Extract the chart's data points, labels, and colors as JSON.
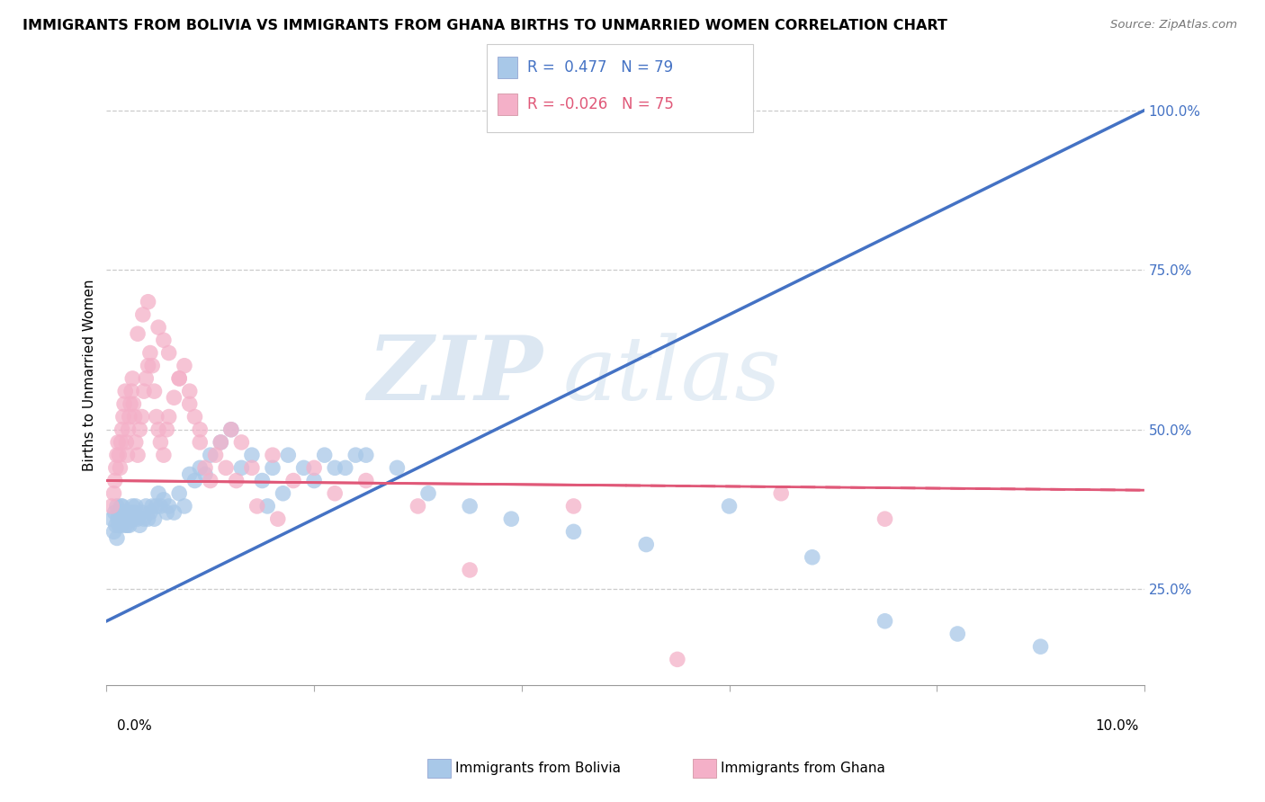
{
  "title": "IMMIGRANTS FROM BOLIVIA VS IMMIGRANTS FROM GHANA BIRTHS TO UNMARRIED WOMEN CORRELATION CHART",
  "source": "Source: ZipAtlas.com",
  "ylabel": "Births to Unmarried Women",
  "legend_label1": "Immigrants from Bolivia",
  "legend_label2": "Immigrants from Ghana",
  "watermark_zip": "ZIP",
  "watermark_atlas": "atlas",
  "bolivia_color": "#a8c8e8",
  "ghana_color": "#f4b0c8",
  "bolivia_line_color": "#4472c4",
  "ghana_line_color": "#e05878",
  "xlim": [
    0.0,
    10.0
  ],
  "ylim": [
    10.0,
    107.0
  ],
  "R_bolivia": 0.477,
  "N_bolivia": 79,
  "R_ghana": -0.026,
  "N_ghana": 75,
  "bolivia_line_x0": 0.0,
  "bolivia_line_y0": 20.0,
  "bolivia_line_x1": 10.0,
  "bolivia_line_y1": 100.0,
  "ghana_line_x0": 0.0,
  "ghana_line_y0": 42.0,
  "ghana_line_x1": 10.0,
  "ghana_line_y1": 40.5,
  "bolivia_x": [
    0.05,
    0.07,
    0.08,
    0.09,
    0.1,
    0.1,
    0.11,
    0.12,
    0.12,
    0.13,
    0.14,
    0.14,
    0.15,
    0.15,
    0.16,
    0.17,
    0.18,
    0.18,
    0.19,
    0.2,
    0.2,
    0.21,
    0.22,
    0.23,
    0.24,
    0.25,
    0.26,
    0.27,
    0.28,
    0.3,
    0.32,
    0.34,
    0.36,
    0.38,
    0.4,
    0.42,
    0.44,
    0.46,
    0.48,
    0.5,
    0.52,
    0.55,
    0.58,
    0.6,
    0.65,
    0.7,
    0.75,
    0.8,
    0.85,
    0.9,
    0.95,
    1.0,
    1.1,
    1.2,
    1.3,
    1.4,
    1.55,
    1.7,
    1.9,
    2.1,
    2.3,
    2.5,
    2.8,
    3.1,
    3.5,
    3.9,
    4.5,
    5.2,
    6.0,
    6.8,
    7.5,
    8.2,
    9.0,
    1.5,
    1.6,
    1.75,
    2.0,
    2.2,
    2.4
  ],
  "bolivia_y": [
    36,
    34,
    37,
    35,
    33,
    38,
    36,
    35,
    37,
    36,
    38,
    35,
    36,
    38,
    37,
    36,
    35,
    37,
    36,
    35,
    37,
    36,
    35,
    37,
    36,
    38,
    36,
    37,
    38,
    36,
    35,
    37,
    36,
    38,
    36,
    37,
    38,
    36,
    38,
    40,
    38,
    39,
    37,
    38,
    37,
    40,
    38,
    43,
    42,
    44,
    43,
    46,
    48,
    50,
    44,
    46,
    38,
    40,
    44,
    46,
    44,
    46,
    44,
    40,
    38,
    36,
    34,
    32,
    38,
    30,
    20,
    18,
    16,
    42,
    44,
    46,
    42,
    44,
    46
  ],
  "ghana_x": [
    0.05,
    0.07,
    0.08,
    0.09,
    0.1,
    0.11,
    0.12,
    0.13,
    0.14,
    0.15,
    0.16,
    0.17,
    0.18,
    0.19,
    0.2,
    0.21,
    0.22,
    0.23,
    0.24,
    0.25,
    0.26,
    0.27,
    0.28,
    0.3,
    0.32,
    0.34,
    0.36,
    0.38,
    0.4,
    0.42,
    0.44,
    0.46,
    0.48,
    0.5,
    0.52,
    0.55,
    0.58,
    0.6,
    0.65,
    0.7,
    0.75,
    0.8,
    0.85,
    0.9,
    0.95,
    1.0,
    1.1,
    1.2,
    1.3,
    1.4,
    1.6,
    1.8,
    2.0,
    2.2,
    2.5,
    3.0,
    3.5,
    4.5,
    5.5,
    6.5,
    7.5,
    0.3,
    0.35,
    0.4,
    0.5,
    0.55,
    0.6,
    0.7,
    0.8,
    0.9,
    1.05,
    1.15,
    1.25,
    1.45,
    1.65
  ],
  "ghana_y": [
    38,
    40,
    42,
    44,
    46,
    48,
    46,
    44,
    48,
    50,
    52,
    54,
    56,
    48,
    46,
    50,
    52,
    54,
    56,
    58,
    54,
    52,
    48,
    46,
    50,
    52,
    56,
    58,
    60,
    62,
    60,
    56,
    52,
    50,
    48,
    46,
    50,
    52,
    55,
    58,
    60,
    56,
    52,
    48,
    44,
    42,
    48,
    50,
    48,
    44,
    46,
    42,
    44,
    40,
    42,
    38,
    28,
    38,
    14,
    40,
    36,
    65,
    68,
    70,
    66,
    64,
    62,
    58,
    54,
    50,
    46,
    44,
    42,
    38,
    36
  ]
}
